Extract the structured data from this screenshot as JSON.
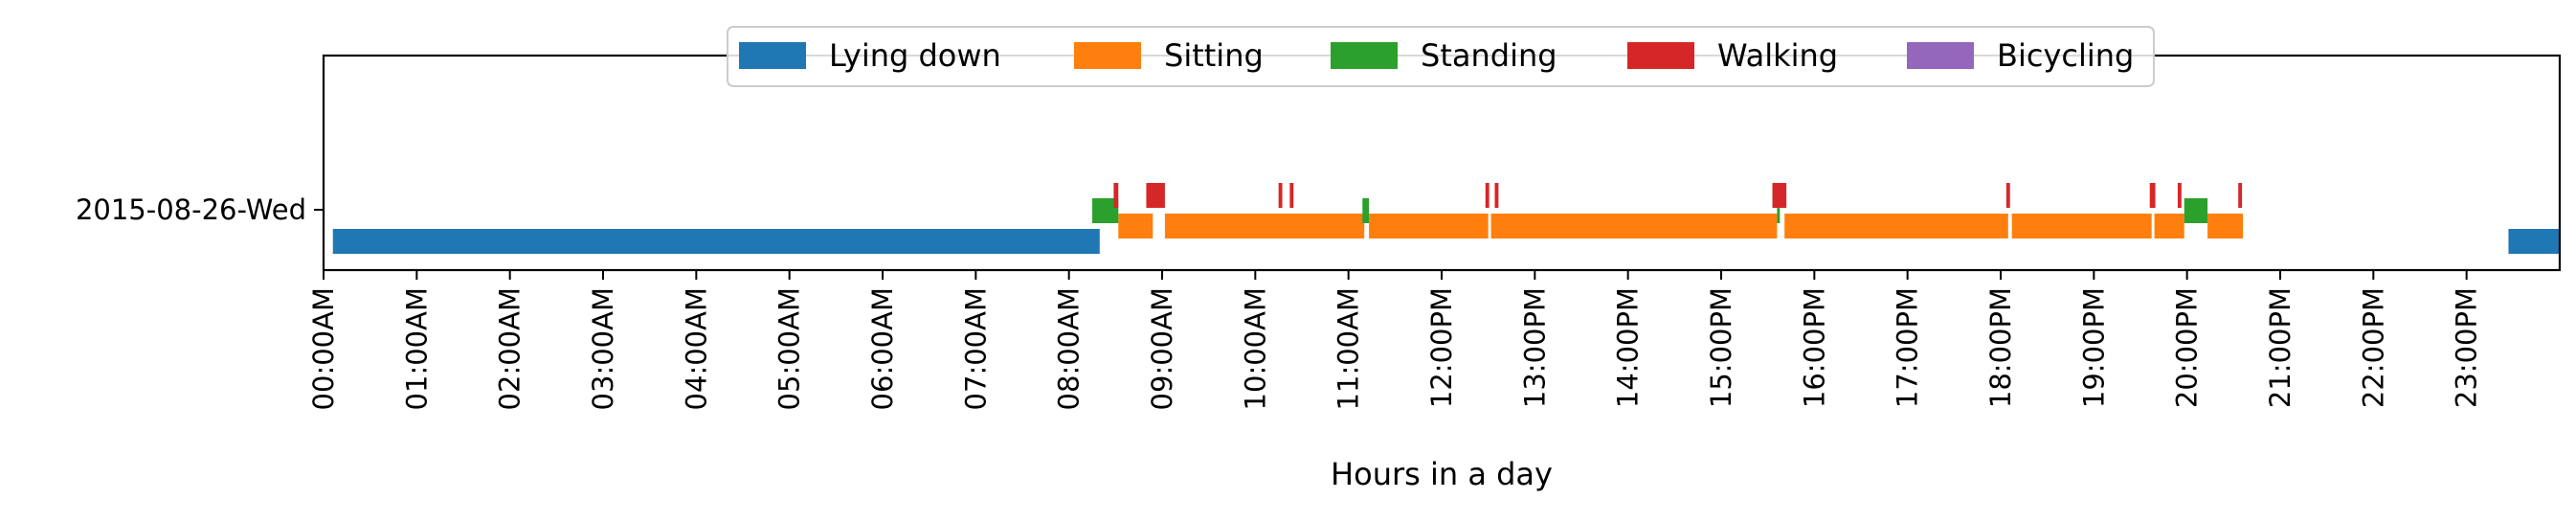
{
  "chart_data": {
    "type": "timeline",
    "title": "",
    "xlabel": "Hours in a day",
    "ylabel": "",
    "xlim": [
      0,
      24
    ],
    "grid": false,
    "legend_placement": "top-center",
    "rows": [
      "2015-08-26-Wed"
    ],
    "x_tick_labels": [
      "00:00AM",
      "01:00AM",
      "02:00AM",
      "03:00AM",
      "04:00AM",
      "05:00AM",
      "06:00AM",
      "07:00AM",
      "08:00AM",
      "09:00AM",
      "10:00AM",
      "11:00AM",
      "12:00PM",
      "13:00PM",
      "14:00PM",
      "15:00PM",
      "16:00PM",
      "17:00PM",
      "18:00PM",
      "19:00PM",
      "20:00PM",
      "21:00PM",
      "22:00PM",
      "23:00PM"
    ],
    "series": [
      {
        "name": "Lying down",
        "color": "#1f77b4",
        "intervals": [
          [
            0.1,
            8.33
          ],
          [
            23.45,
            24.0
          ]
        ]
      },
      {
        "name": "Sitting",
        "color": "#ff7f0e",
        "intervals": [
          [
            8.53,
            8.9
          ],
          [
            9.03,
            11.17
          ],
          [
            11.22,
            12.5
          ],
          [
            12.53,
            15.6
          ],
          [
            15.68,
            18.08
          ],
          [
            18.12,
            19.62
          ],
          [
            19.65,
            19.97
          ],
          [
            20.22,
            20.6
          ]
        ]
      },
      {
        "name": "Standing",
        "color": "#2ca02c",
        "intervals": [
          [
            8.25,
            8.53
          ],
          [
            11.15,
            11.22
          ],
          [
            15.6,
            15.63
          ],
          [
            19.97,
            20.22
          ]
        ]
      },
      {
        "name": "Walking",
        "color": "#d62728",
        "intervals": [
          [
            8.48,
            8.53
          ],
          [
            8.83,
            9.03
          ],
          [
            10.25,
            10.29
          ],
          [
            10.37,
            10.41
          ],
          [
            12.47,
            12.51
          ],
          [
            12.57,
            12.61
          ],
          [
            15.55,
            15.7
          ],
          [
            18.06,
            18.1
          ],
          [
            19.6,
            19.66
          ],
          [
            19.9,
            19.94
          ],
          [
            20.55,
            20.59
          ]
        ]
      },
      {
        "name": "Bicycling",
        "color": "#9467bd",
        "intervals": []
      }
    ]
  }
}
